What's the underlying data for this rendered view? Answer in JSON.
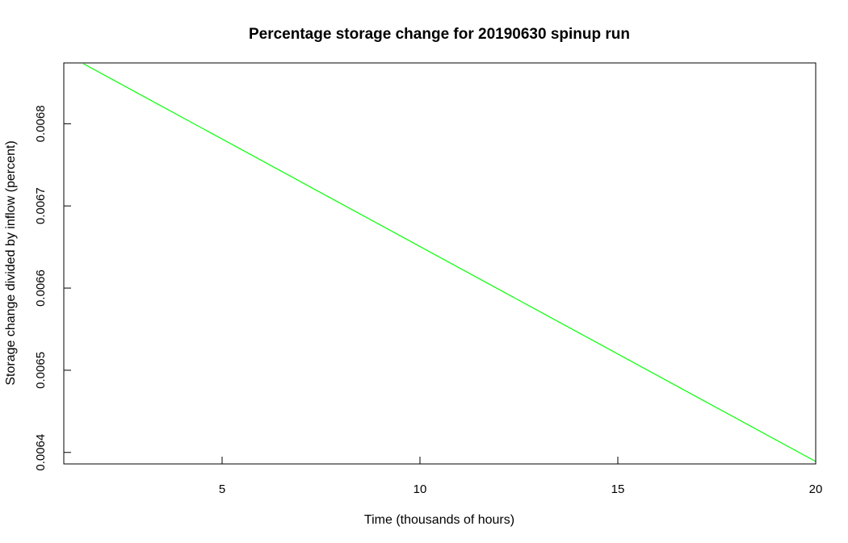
{
  "chart_data": {
    "type": "line",
    "title": "Percentage storage change for 20190630 spinup run",
    "xlabel": "Time (thousands of hours)",
    "ylabel": "Storage change divided by inflow (percent)",
    "xlim": [
      1,
      20
    ],
    "ylim": [
      0.006386,
      0.006874
    ],
    "x_ticks": [
      5,
      10,
      15,
      20
    ],
    "x_tick_labels": [
      "5",
      "10",
      "15",
      "20"
    ],
    "y_ticks": [
      0.0064,
      0.0065,
      0.0066,
      0.0067,
      0.0068
    ],
    "y_tick_labels": [
      "0.0064",
      "0.0065",
      "0.0066",
      "0.0067",
      "0.0068"
    ],
    "grid": false,
    "legend": "none",
    "series": [
      {
        "color": "#00ff00",
        "x": [
          1.5,
          20
        ],
        "y": [
          0.006873,
          0.006389
        ]
      }
    ]
  }
}
